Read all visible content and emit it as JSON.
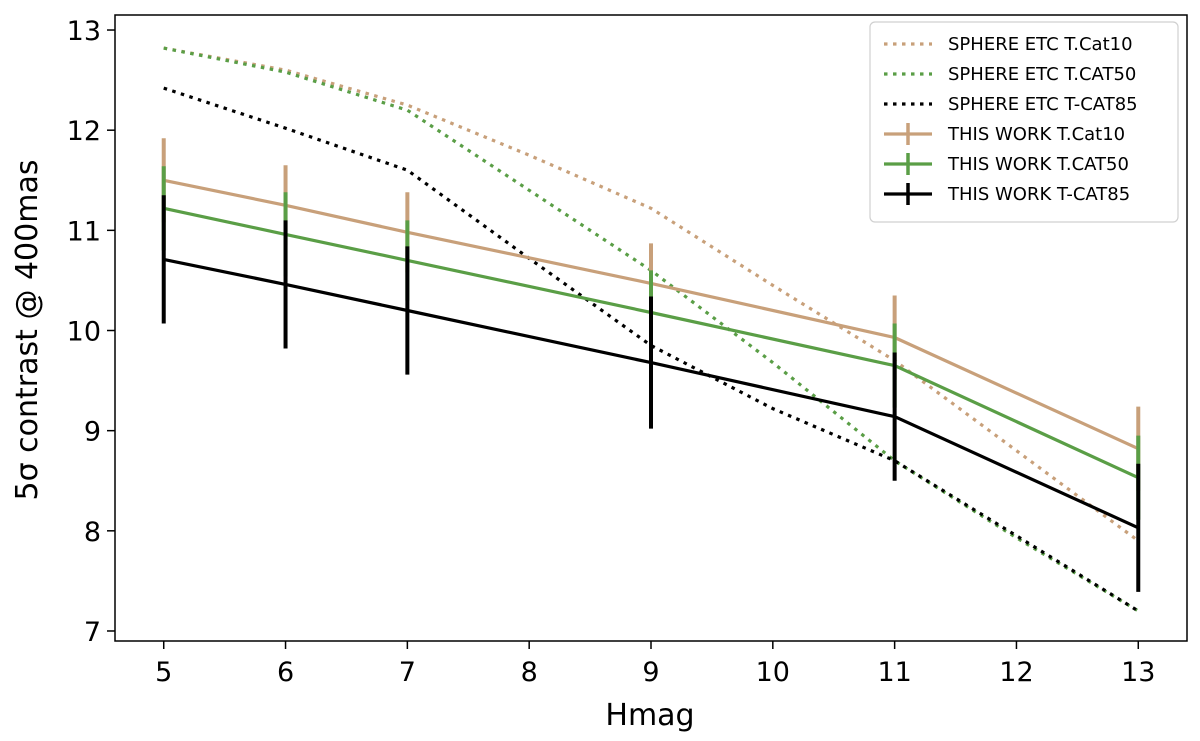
{
  "chart_data": {
    "type": "line",
    "xlabel": "Hmag",
    "ylabel": "5σ contrast @ 400mas",
    "xlim": [
      4.6,
      13.4
    ],
    "ylim": [
      6.9,
      13.15
    ],
    "xticks": [
      5,
      6,
      7,
      8,
      9,
      10,
      11,
      12,
      13
    ],
    "yticks": [
      7,
      8,
      9,
      10,
      11,
      12,
      13
    ],
    "grid": false,
    "legend_position": "top-right",
    "series": [
      {
        "name": "SPHERE ETC T.Cat10",
        "style": "dotted",
        "color": "#c8a07a",
        "x": [
          5,
          6,
          7,
          8,
          9,
          10,
          11,
          12,
          13
        ],
        "y": [
          12.82,
          12.6,
          12.25,
          11.75,
          11.22,
          10.45,
          9.7,
          8.8,
          7.9
        ]
      },
      {
        "name": "SPHERE ETC T.CAT50",
        "style": "dotted",
        "color": "#5a9e46",
        "x": [
          5,
          6,
          7,
          8,
          9,
          10,
          11,
          12,
          13
        ],
        "y": [
          12.82,
          12.58,
          12.2,
          11.4,
          10.6,
          9.68,
          8.7,
          7.93,
          7.2
        ]
      },
      {
        "name": "SPHERE ETC T-CAT85",
        "style": "dotted",
        "color": "#000000",
        "x": [
          5,
          6,
          7,
          8,
          9,
          10,
          11,
          12,
          13
        ],
        "y": [
          12.42,
          12.02,
          11.6,
          10.72,
          9.85,
          9.22,
          8.7,
          7.95,
          7.2
        ]
      },
      {
        "name": "THIS WORK T.Cat10",
        "style": "solid",
        "color": "#c8a07a",
        "x": [
          5,
          6,
          7,
          9,
          11,
          13
        ],
        "y": [
          11.5,
          11.25,
          10.98,
          10.47,
          9.93,
          8.82
        ],
        "err": [
          0.42,
          0.4,
          0.4,
          0.4,
          0.42,
          0.42
        ]
      },
      {
        "name": "THIS WORK T.CAT50",
        "style": "solid",
        "color": "#5a9e46",
        "x": [
          5,
          6,
          7,
          9,
          11,
          13
        ],
        "y": [
          11.22,
          10.96,
          10.7,
          10.18,
          9.65,
          8.53
        ],
        "err": [
          0.42,
          0.42,
          0.4,
          0.42,
          0.42,
          0.42
        ]
      },
      {
        "name": "THIS WORK T-CAT85",
        "style": "solid",
        "color": "#000000",
        "x": [
          5,
          6,
          7,
          9,
          11,
          13
        ],
        "y": [
          10.71,
          10.46,
          10.2,
          9.68,
          9.14,
          8.03
        ],
        "err": [
          0.64,
          0.64,
          0.64,
          0.66,
          0.64,
          0.64
        ]
      }
    ]
  }
}
